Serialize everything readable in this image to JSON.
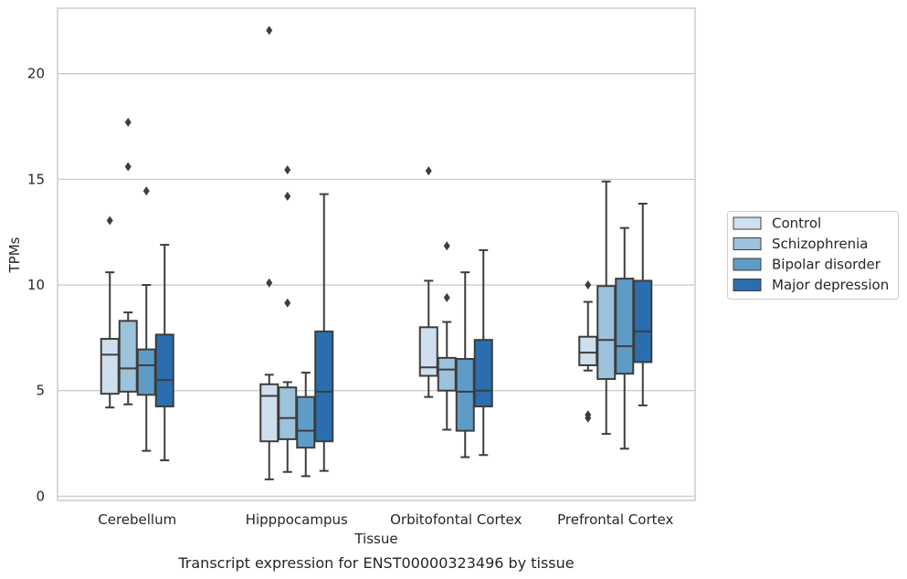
{
  "chart_data": {
    "type": "box",
    "title": "",
    "caption": "Transcript expression for ENST00000323496 by tissue",
    "xlabel": "Tissue",
    "ylabel": "TPMs",
    "ylim": [
      -0.2,
      23.1
    ],
    "yticks": [
      0,
      5,
      10,
      15,
      20
    ],
    "grid": "horizontal",
    "legend_position": "right",
    "categories": [
      "Cerebellum",
      "Hipppocampus",
      "Orbitofontal Cortex",
      "Prefrontal Cortex"
    ],
    "series": [
      {
        "name": "Control",
        "color": "#d0dfee",
        "boxes": [
          {
            "min": 4.2,
            "q1": 4.85,
            "median": 6.7,
            "q3": 7.45,
            "max": 10.6,
            "outliers": [
              13.05
            ]
          },
          {
            "min": 0.8,
            "q1": 2.6,
            "median": 4.75,
            "q3": 5.3,
            "max": 5.75,
            "outliers": [
              10.1,
              22.05
            ]
          },
          {
            "min": 4.7,
            "q1": 5.7,
            "median": 6.1,
            "q3": 8.0,
            "max": 10.2,
            "outliers": [
              15.4
            ]
          },
          {
            "min": 5.95,
            "q1": 6.2,
            "median": 6.8,
            "q3": 7.55,
            "max": 9.2,
            "outliers": [
              3.7,
              3.85,
              10.0
            ]
          }
        ]
      },
      {
        "name": "Schizophrenia",
        "color": "#9cc2dc",
        "boxes": [
          {
            "min": 4.35,
            "q1": 4.95,
            "median": 6.05,
            "q3": 8.3,
            "max": 8.7,
            "outliers": [
              15.6,
              17.7
            ]
          },
          {
            "min": 1.15,
            "q1": 2.7,
            "median": 3.7,
            "q3": 5.15,
            "max": 5.4,
            "outliers": [
              9.15,
              14.2,
              15.45
            ]
          },
          {
            "min": 3.15,
            "q1": 5.0,
            "median": 6.0,
            "q3": 6.55,
            "max": 8.25,
            "outliers": [
              9.4,
              11.85
            ]
          },
          {
            "min": 2.95,
            "q1": 5.55,
            "median": 7.4,
            "q3": 9.95,
            "max": 14.9,
            "outliers": []
          }
        ]
      },
      {
        "name": "Bipolar disorder",
        "color": "#5e9cc6",
        "boxes": [
          {
            "min": 2.15,
            "q1": 4.8,
            "median": 6.2,
            "q3": 6.95,
            "max": 10.0,
            "outliers": [
              14.45
            ]
          },
          {
            "min": 0.95,
            "q1": 2.3,
            "median": 3.1,
            "q3": 4.7,
            "max": 5.85,
            "outliers": []
          },
          {
            "min": 1.85,
            "q1": 3.1,
            "median": 4.95,
            "q3": 6.5,
            "max": 10.6,
            "outliers": []
          },
          {
            "min": 2.25,
            "q1": 5.8,
            "median": 7.1,
            "q3": 10.3,
            "max": 12.7,
            "outliers": []
          }
        ]
      },
      {
        "name": "Major depression",
        "color": "#2a6eaf",
        "boxes": [
          {
            "min": 1.7,
            "q1": 4.25,
            "median": 5.5,
            "q3": 7.65,
            "max": 11.9,
            "outliers": []
          },
          {
            "min": 1.2,
            "q1": 2.6,
            "median": 4.95,
            "q3": 7.8,
            "max": 14.3,
            "outliers": []
          },
          {
            "min": 1.95,
            "q1": 4.25,
            "median": 5.0,
            "q3": 7.4,
            "max": 11.65,
            "outliers": []
          },
          {
            "min": 4.3,
            "q1": 6.35,
            "median": 7.8,
            "q3": 10.2,
            "max": 13.85,
            "outliers": []
          }
        ]
      }
    ]
  }
}
